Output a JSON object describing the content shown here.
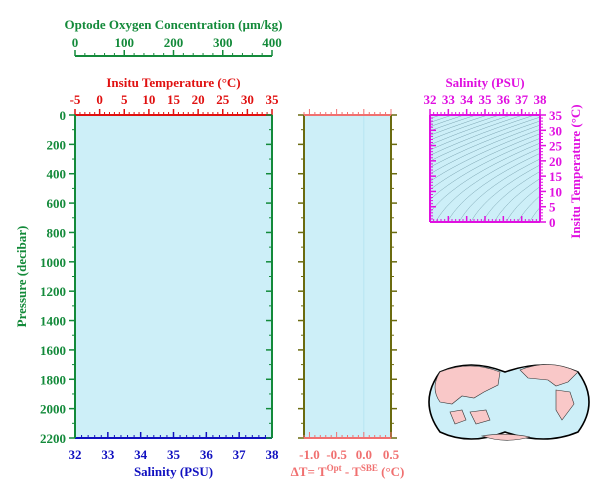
{
  "colors": {
    "background_fill": "#cdeff8",
    "pressure_axis": "#138a3a",
    "salinity_axis": "#1010c0",
    "temperature_axis": "#e01010",
    "oxygen_axis": "#138a3a",
    "delta_t_axis": "#f07070",
    "delta_t_frame": "#6b6b10",
    "ts_axis": "#e010e0",
    "land": "#f9c8c8",
    "ocean": "#cdeff8"
  },
  "chart_data": [
    {
      "type": "line",
      "panel": "profile",
      "series": [],
      "ylabel": "Pressure (decibar)",
      "ylim": [
        2200,
        0
      ],
      "yticks": [
        "0",
        "200",
        "400",
        "600",
        "800",
        "1000",
        "1200",
        "1400",
        "1600",
        "1800",
        "2000",
        "2200"
      ],
      "xlabel_bottom": "Salinity (PSU)",
      "xlim_bottom": [
        32,
        38
      ],
      "xticks_bottom": [
        "32",
        "33",
        "34",
        "35",
        "36",
        "37",
        "38"
      ],
      "xlabel_top": "Insitu Temperature (°C)",
      "xlim_top": [
        -5,
        35
      ],
      "xticks_top": [
        "-5",
        "0",
        "5",
        "10",
        "15",
        "20",
        "25",
        "30",
        "35"
      ],
      "xlabel_oxygen": "Optode Oxygen Concentration (µm/kg)",
      "xlim_oxygen": [
        0,
        400
      ],
      "xticks_oxygen": [
        "0",
        "100",
        "200",
        "300",
        "400"
      ],
      "grid": false
    },
    {
      "type": "line",
      "panel": "delta-t",
      "series": [],
      "ylim": [
        2200,
        0
      ],
      "xlabel": "ΔT= T",
      "xlabel_sup1": "Opt",
      "xlabel_mid": " - T",
      "xlabel_sup2": "SBE",
      "xlabel_end": " (°C)",
      "xlim": [
        -1.1,
        0.5
      ],
      "xticks": [
        "-1.0",
        "-0.5",
        "0.0",
        "0.5"
      ],
      "reference_line_x": 0.0
    },
    {
      "type": "scatter",
      "panel": "ts-diagram",
      "series": [],
      "xlabel": "Salinity (PSU)",
      "xlim": [
        32,
        38
      ],
      "xticks": [
        "32",
        "33",
        "34",
        "35",
        "36",
        "37",
        "38"
      ],
      "ylabel": "Insitu Temperature (°C)",
      "ylim": [
        0,
        35
      ],
      "yticks": [
        "0",
        "5",
        "10",
        "15",
        "20",
        "25",
        "30",
        "35"
      ],
      "density_contours": true
    }
  ],
  "map": {
    "projection": "world map centered on Pacific"
  }
}
